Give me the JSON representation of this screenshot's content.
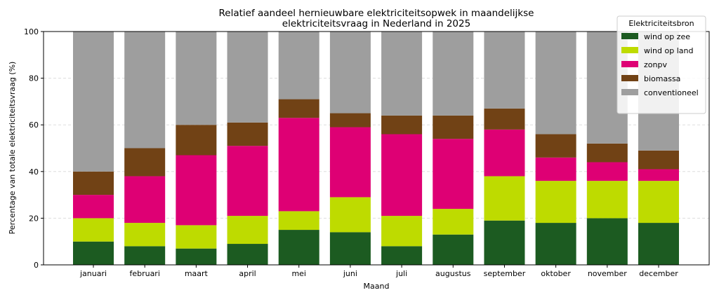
{
  "chart_data": {
    "type": "bar",
    "stacked": true,
    "title": [
      "Relatief aandeel hernieuwbare elektriciteitsopwek in maandelijkse",
      "elektriciteitsvraag in Nederland in 2025"
    ],
    "xlabel": "Maand",
    "ylabel": "Percentage van totale elektriciteitsvraag (%)",
    "ylim": [
      0,
      100
    ],
    "yticks": [
      0,
      20,
      40,
      60,
      80,
      100
    ],
    "grid": "y-dashed",
    "categories": [
      "januari",
      "februari",
      "maart",
      "april",
      "mei",
      "juni",
      "juli",
      "augustus",
      "september",
      "oktober",
      "november",
      "december"
    ],
    "legend": {
      "title": "Elektriciteitsbron",
      "placement": "top-right"
    },
    "series": [
      {
        "name": "wind op zee",
        "color": "#1c5b21",
        "values": [
          10,
          8,
          7,
          9,
          15,
          14,
          8,
          13,
          19,
          18,
          20,
          18
        ]
      },
      {
        "name": "wind op land",
        "color": "#bedb00",
        "values": [
          10,
          10,
          10,
          12,
          8,
          15,
          13,
          11,
          19,
          18,
          16,
          18
        ]
      },
      {
        "name": "zonpv",
        "color": "#de0074",
        "values": [
          10,
          20,
          30,
          30,
          40,
          30,
          35,
          30,
          20,
          10,
          8,
          5
        ]
      },
      {
        "name": "biomassa",
        "color": "#714215",
        "values": [
          10,
          12,
          13,
          10,
          8,
          6,
          8,
          10,
          9,
          10,
          8,
          8
        ]
      },
      {
        "name": "conventioneel",
        "color": "#9e9e9e",
        "values": [
          60,
          50,
          40,
          39,
          29,
          35,
          36,
          36,
          33,
          44,
          48,
          51
        ]
      }
    ]
  }
}
